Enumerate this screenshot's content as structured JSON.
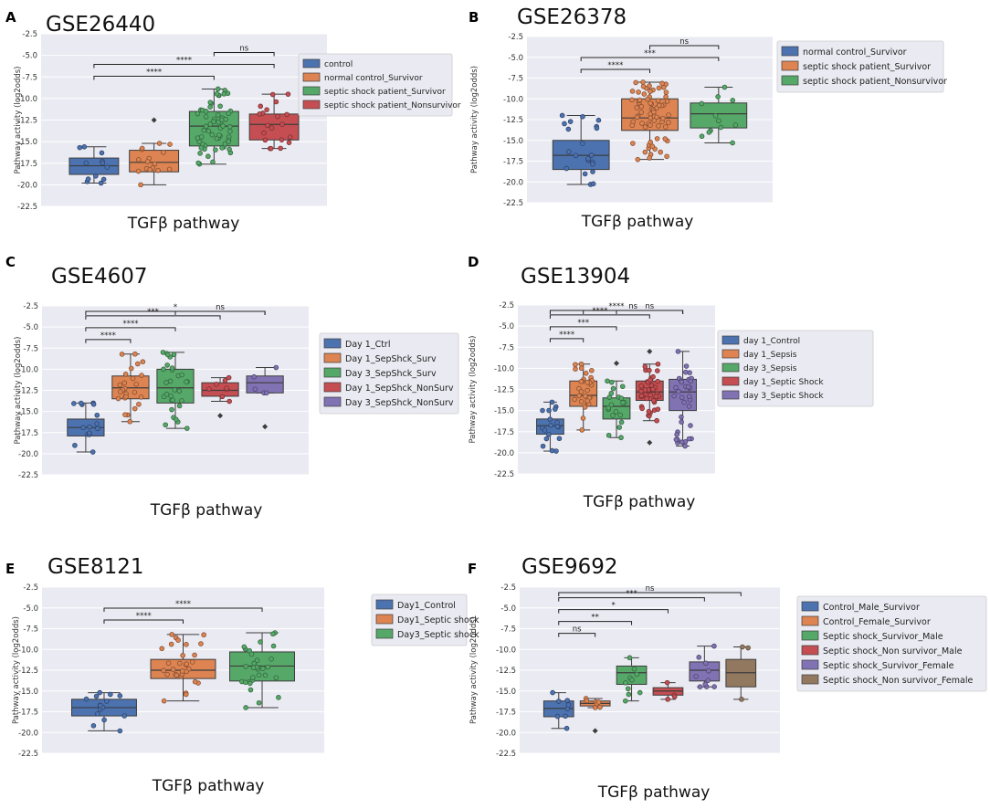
{
  "chart_data": [
    {
      "panel": "A",
      "type": "box",
      "title": "GSE26440",
      "ylabel": "Pathway activity (log2odds)",
      "xlabel": "TGFβ pathway",
      "ylim": [
        -22.5,
        -2.5
      ],
      "yticks": [
        "-2.5",
        "-5.0",
        "-7.5",
        "-10.0",
        "-12.5",
        "-15.0",
        "-17.5",
        "-20.0",
        "-22.5"
      ],
      "tickvals": [
        -2.5,
        -5.0,
        -7.5,
        -10.0,
        -12.5,
        -15.0,
        -17.5,
        -20.0,
        -22.5
      ],
      "groups": [
        {
          "name": "control",
          "color": "#4c72b0",
          "q1": -18.8,
          "median": -17.8,
          "q3": -16.9,
          "lo": -19.8,
          "hi": -15.6,
          "n": 12,
          "outliers": []
        },
        {
          "name": "normal control_Survivor",
          "color": "#dd8452",
          "q1": -18.5,
          "median": -17.4,
          "q3": -16.0,
          "lo": -20.0,
          "hi": -15.2,
          "n": 16,
          "outliers": [
            -12.5
          ]
        },
        {
          "name": "septic shock patient_Survivor",
          "color": "#55a868",
          "q1": -15.5,
          "median": -13.2,
          "q3": -11.5,
          "lo": -17.6,
          "hi": -8.9,
          "n": 60,
          "outliers": []
        },
        {
          "name": "septic shock patient_Nonsurvivor",
          "color": "#c44e52",
          "q1": -14.8,
          "median": -13.0,
          "q3": -11.8,
          "lo": -15.8,
          "hi": -9.5,
          "n": 20,
          "outliers": []
        }
      ],
      "comparisons": [
        {
          "from": 2,
          "to": 3,
          "label": "ns"
        },
        {
          "from": 0,
          "to": 3,
          "label": "****"
        },
        {
          "from": 0,
          "to": 2,
          "label": "****"
        }
      ]
    },
    {
      "panel": "B",
      "type": "box",
      "title": "GSE26378",
      "ylabel": "Pathway activity (log2odds)",
      "xlabel": "TGFβ pathway",
      "ylim": [
        -22.5,
        -2.5
      ],
      "yticks": [
        "-2.5",
        "-5.0",
        "-7.5",
        "-10.0",
        "-12.5",
        "-15.0",
        "-17.5",
        "-20.0",
        "-22.5"
      ],
      "tickvals": [
        -2.5,
        -5.0,
        -7.5,
        -10.0,
        -12.5,
        -15.0,
        -17.5,
        -20.0,
        -22.5
      ],
      "groups": [
        {
          "name": "normal control_Survivor",
          "color": "#4c72b0",
          "q1": -18.5,
          "median": -16.8,
          "q3": -15.0,
          "lo": -20.3,
          "hi": -12.0,
          "n": 21,
          "outliers": []
        },
        {
          "name": "septic shock patient_Survivor",
          "color": "#dd8452",
          "q1": -13.8,
          "median": -12.3,
          "q3": -10.0,
          "lo": -17.3,
          "hi": -8.0,
          "n": 70,
          "outliers": []
        },
        {
          "name": "septic shock patient_Nonsurvivor",
          "color": "#55a868",
          "q1": -13.5,
          "median": -11.8,
          "q3": -10.5,
          "lo": -15.3,
          "hi": -8.6,
          "n": 12,
          "outliers": []
        }
      ],
      "comparisons": [
        {
          "from": 1,
          "to": 2,
          "label": "ns"
        },
        {
          "from": 0,
          "to": 2,
          "label": "***"
        },
        {
          "from": 0,
          "to": 1,
          "label": "****"
        }
      ]
    },
    {
      "panel": "C",
      "type": "box",
      "title": "GSE4607",
      "ylabel": "Pathway activity (log2odds)",
      "xlabel": "TGFβ pathway",
      "ylim": [
        -22.5,
        -2.5
      ],
      "yticks": [
        "-2.5",
        "-5.0",
        "-7.5",
        "-10.0",
        "-12.5",
        "-15.0",
        "-17.5",
        "-20.0",
        "-22.5"
      ],
      "tickvals": [
        -2.5,
        -5.0,
        -7.5,
        -10.0,
        -12.5,
        -15.0,
        -17.5,
        -20.0,
        -22.5
      ],
      "groups": [
        {
          "name": "Day 1_Ctrl",
          "color": "#4c72b0",
          "q1": -17.9,
          "median": -16.9,
          "q3": -15.9,
          "lo": -19.8,
          "hi": -14.0,
          "n": 15,
          "outliers": []
        },
        {
          "name": "Day 1_SepShck_Surv",
          "color": "#dd8452",
          "q1": -13.5,
          "median": -12.2,
          "q3": -10.8,
          "lo": -16.2,
          "hi": -8.2,
          "n": 25,
          "outliers": []
        },
        {
          "name": "Day 3_SepShck_Surv",
          "color": "#55a868",
          "q1": -14.0,
          "median": -12.2,
          "q3": -10.0,
          "lo": -17.0,
          "hi": -8.0,
          "n": 30,
          "outliers": []
        },
        {
          "name": "Day 1_SepShck_NonSurv",
          "color": "#c44e52",
          "q1": -13.2,
          "median": -12.5,
          "q3": -11.6,
          "lo": -13.8,
          "hi": -11.0,
          "n": 8,
          "outliers": [
            -15.5
          ]
        },
        {
          "name": "Day 3_SepShck_NonSurv",
          "color": "#8172b3",
          "q1": -12.8,
          "median": -11.6,
          "q3": -10.8,
          "lo": -12.8,
          "hi": -9.8,
          "n": 5,
          "outliers": [
            -16.8
          ]
        }
      ],
      "comparisons": [
        {
          "from": 2,
          "to": 4,
          "label": "ns"
        },
        {
          "from": 0,
          "to": 4,
          "label": "*"
        },
        {
          "from": 0,
          "to": 3,
          "label": "***"
        },
        {
          "from": 0,
          "to": 2,
          "label": "****"
        },
        {
          "from": 0,
          "to": 1,
          "label": "****"
        }
      ]
    },
    {
      "panel": "D",
      "type": "box",
      "title": "GSE13904",
      "ylabel": "Pathway activity (log2odds)",
      "xlabel": "TGFβ pathway",
      "ylim": [
        -22.5,
        -2.5
      ],
      "yticks": [
        "-2.5",
        "-5.0",
        "-7.5",
        "-10.0",
        "-12.5",
        "-15.0",
        "-17.5",
        "-20.0",
        "-22.5"
      ],
      "tickvals": [
        -2.5,
        -5.0,
        -7.5,
        -10.0,
        -12.5,
        -15.0,
        -17.5,
        -20.0,
        -22.5
      ],
      "groups": [
        {
          "name": "day 1_Control",
          "color": "#4c72b0",
          "q1": -17.8,
          "median": -16.8,
          "q3": -16.0,
          "lo": -19.8,
          "hi": -14.0,
          "n": 18,
          "outliers": []
        },
        {
          "name": "day 1_Sepsis",
          "color": "#dd8452",
          "q1": -14.5,
          "median": -13.2,
          "q3": -11.5,
          "lo": -17.3,
          "hi": -9.5,
          "n": 30,
          "outliers": []
        },
        {
          "name": "day 3_Sepsis",
          "color": "#55a868",
          "q1": -16.0,
          "median": -14.5,
          "q3": -13.5,
          "lo": -18.2,
          "hi": -11.5,
          "n": 20,
          "outliers": [
            -9.4
          ]
        },
        {
          "name": "day 1_Septic Shock",
          "color": "#c44e52",
          "q1": -13.8,
          "median": -12.8,
          "q3": -11.5,
          "lo": -16.2,
          "hi": -9.5,
          "n": 45,
          "outliers": [
            -8.0,
            -18.8
          ]
        },
        {
          "name": "day 3_Septic Shock",
          "color": "#8172b3",
          "q1": -15.0,
          "median": -12.8,
          "q3": -11.3,
          "lo": -19.2,
          "hi": -8.0,
          "n": 35,
          "outliers": []
        }
      ],
      "comparisons": [
        {
          "from": 2,
          "to": 4,
          "label": "ns"
        },
        {
          "from": 1,
          "to": 4,
          "label": "ns"
        },
        {
          "from": 0,
          "to": 4,
          "label": "****"
        },
        {
          "from": 0,
          "to": 3,
          "label": "****"
        },
        {
          "from": 0,
          "to": 2,
          "label": "***"
        },
        {
          "from": 0,
          "to": 1,
          "label": "****"
        }
      ]
    },
    {
      "panel": "E",
      "type": "box",
      "title": "GSE8121",
      "ylabel": "Pathway activity (log2odds)",
      "xlabel": "TGFβ pathway",
      "ylim": [
        -22.5,
        -2.5
      ],
      "yticks": [
        "-2.5",
        "-5.0",
        "-7.5",
        "-10.0",
        "-12.5",
        "-15.0",
        "-17.5",
        "-20.0",
        "-22.5"
      ],
      "tickvals": [
        -2.5,
        -5.0,
        -7.5,
        -10.0,
        -12.5,
        -15.0,
        -17.5,
        -20.0,
        -22.5
      ],
      "groups": [
        {
          "name": "Day1_Control",
          "color": "#4c72b0",
          "q1": -18.0,
          "median": -17.0,
          "q3": -16.0,
          "lo": -19.8,
          "hi": -15.2,
          "n": 15,
          "outliers": []
        },
        {
          "name": "Day1_Septic shock",
          "color": "#dd8452",
          "q1": -13.5,
          "median": -12.5,
          "q3": -11.2,
          "lo": -16.2,
          "hi": -8.2,
          "n": 30,
          "outliers": []
        },
        {
          "name": "Day3_Septic shock",
          "color": "#55a868",
          "q1": -13.8,
          "median": -12.0,
          "q3": -10.3,
          "lo": -17.0,
          "hi": -8.0,
          "n": 30,
          "outliers": []
        }
      ],
      "comparisons": [
        {
          "from": 0,
          "to": 2,
          "label": "****"
        },
        {
          "from": 0,
          "to": 1,
          "label": "****"
        }
      ]
    },
    {
      "panel": "F",
      "type": "box",
      "title": "GSE9692",
      "ylabel": "Pathway activity (log2odds)",
      "xlabel": "TGFβ pathway",
      "ylim": [
        -22.5,
        -2.5
      ],
      "yticks": [
        "-2.5",
        "-5.0",
        "-7.5",
        "-10.0",
        "-12.5",
        "-15.0",
        "-17.5",
        "-20.0",
        "-22.5"
      ],
      "tickvals": [
        -2.5,
        -5.0,
        -7.5,
        -10.0,
        -12.5,
        -15.0,
        -17.5,
        -20.0,
        -22.5
      ],
      "groups": [
        {
          "name": "Control_Male_Survivor",
          "color": "#4c72b0",
          "q1": -18.1,
          "median": -17.1,
          "q3": -16.2,
          "lo": -19.5,
          "hi": -15.2,
          "n": 8,
          "outliers": []
        },
        {
          "name": "Control_Female_Survivor",
          "color": "#dd8452",
          "q1": -16.8,
          "median": -16.5,
          "q3": -16.2,
          "lo": -17.0,
          "hi": -15.9,
          "n": 7,
          "outliers": [
            -19.8
          ]
        },
        {
          "name": "Septic shock_Survivor_Male",
          "color": "#55a868",
          "q1": -14.2,
          "median": -12.8,
          "q3": -12.0,
          "lo": -16.2,
          "hi": -11.0,
          "n": 10,
          "outliers": []
        },
        {
          "name": "Septic shock_Non survivor_Male",
          "color": "#c44e52",
          "q1": -15.5,
          "median": -15.0,
          "q3": -14.6,
          "lo": -16.0,
          "hi": -14.0,
          "n": 4,
          "outliers": []
        },
        {
          "name": "Septic shock_Survivor_Female",
          "color": "#8172b3",
          "q1": -13.8,
          "median": -12.5,
          "q3": -11.5,
          "lo": -14.5,
          "hi": -9.6,
          "n": 10,
          "outliers": []
        },
        {
          "name": "Septic shock_Non survivor_Female",
          "color": "#937860",
          "q1": -14.5,
          "median": -12.8,
          "q3": -11.2,
          "lo": -16.0,
          "hi": -9.7,
          "n": 3,
          "outliers": []
        }
      ],
      "comparisons": [
        {
          "from": 0,
          "to": 5,
          "label": "ns"
        },
        {
          "from": 0,
          "to": 4,
          "label": "***"
        },
        {
          "from": 0,
          "to": 3,
          "label": "*"
        },
        {
          "from": 0,
          "to": 2,
          "label": "**"
        },
        {
          "from": 0,
          "to": 1,
          "label": "ns"
        }
      ]
    }
  ]
}
